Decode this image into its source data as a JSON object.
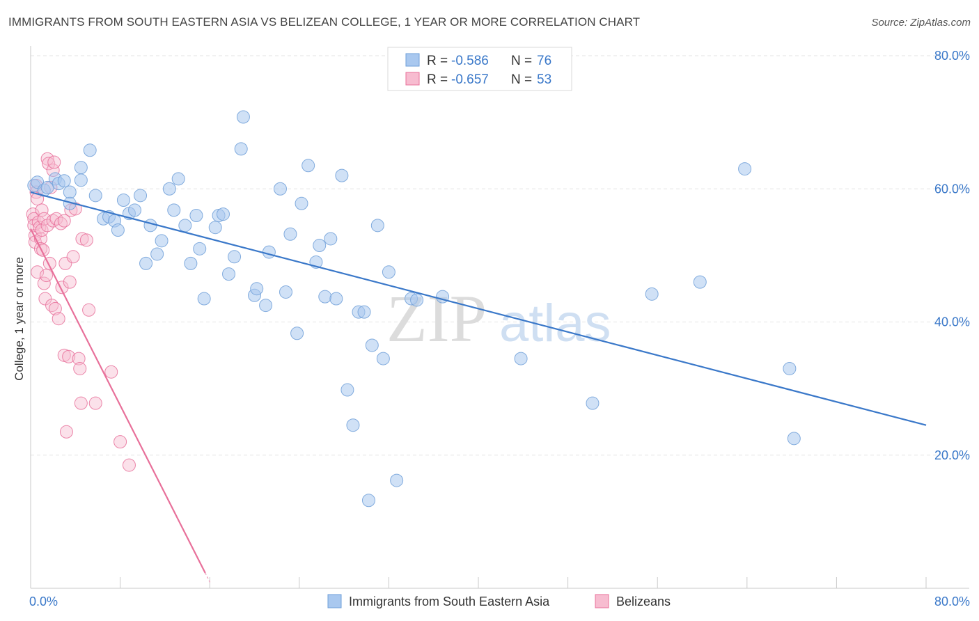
{
  "title": "IMMIGRANTS FROM SOUTH EASTERN ASIA VS BELIZEAN COLLEGE, 1 YEAR OR MORE CORRELATION CHART",
  "source": "Source: ZipAtlas.com",
  "watermark": "ZIPatlas",
  "colors": {
    "blue": "#3a78c9",
    "blue_fill": "#a9c8ef",
    "pink": "#e8709a",
    "pink_fill": "#f7bcd0",
    "grid": "#e3e3e3"
  },
  "legend_top": {
    "rows": [
      {
        "r_label": "R = ",
        "r_value": "-0.586",
        "n_label": "N = ",
        "n_value": "76"
      },
      {
        "r_label": "R = ",
        "r_value": "-0.657",
        "n_label": "N = ",
        "n_value": "53"
      }
    ]
  },
  "chart_data": {
    "type": "scatter",
    "ylabel": "College, 1 year or more",
    "xlim": [
      0,
      80
    ],
    "ylim": [
      0,
      80
    ],
    "x_tick_labels": [
      "0.0%",
      "80.0%"
    ],
    "y_tick_labels": [
      "20.0%",
      "40.0%",
      "60.0%",
      "80.0%"
    ],
    "y_ticks": [
      20,
      40,
      60,
      80
    ],
    "grid": true,
    "legend_position": "bottom",
    "series": [
      {
        "name": "Immigrants from South Eastern Asia",
        "color": "#3a78c9",
        "trend": {
          "x": [
            0,
            80
          ],
          "y": [
            59.5,
            24.5
          ]
        },
        "points": [
          [
            0.3,
            60.5
          ],
          [
            0.6,
            61.0
          ],
          [
            1.2,
            59.8
          ],
          [
            1.5,
            60.2
          ],
          [
            2.2,
            61.5
          ],
          [
            2.5,
            60.8
          ],
          [
            3.0,
            61.2
          ],
          [
            3.5,
            59.5
          ],
          [
            3.5,
            57.8
          ],
          [
            4.5,
            63.2
          ],
          [
            4.5,
            61.3
          ],
          [
            5.3,
            65.8
          ],
          [
            5.8,
            59.0
          ],
          [
            6.5,
            55.5
          ],
          [
            7.0,
            55.8
          ],
          [
            7.5,
            55.2
          ],
          [
            7.8,
            53.8
          ],
          [
            8.3,
            58.3
          ],
          [
            8.8,
            56.3
          ],
          [
            9.3,
            56.8
          ],
          [
            9.8,
            59.0
          ],
          [
            10.3,
            48.8
          ],
          [
            10.7,
            54.5
          ],
          [
            11.3,
            50.2
          ],
          [
            11.7,
            52.2
          ],
          [
            12.4,
            60.0
          ],
          [
            12.8,
            56.8
          ],
          [
            13.2,
            61.5
          ],
          [
            13.8,
            54.5
          ],
          [
            14.3,
            48.8
          ],
          [
            14.8,
            56.0
          ],
          [
            15.1,
            51.0
          ],
          [
            15.5,
            43.5
          ],
          [
            16.5,
            54.2
          ],
          [
            16.8,
            56.0
          ],
          [
            17.2,
            56.2
          ],
          [
            17.7,
            47.2
          ],
          [
            18.2,
            49.8
          ],
          [
            18.8,
            66.0
          ],
          [
            19.0,
            70.8
          ],
          [
            20.0,
            44.0
          ],
          [
            20.2,
            45.0
          ],
          [
            21.0,
            42.5
          ],
          [
            21.3,
            50.5
          ],
          [
            22.3,
            60.0
          ],
          [
            22.8,
            44.5
          ],
          [
            23.2,
            53.2
          ],
          [
            23.8,
            38.3
          ],
          [
            24.2,
            57.8
          ],
          [
            24.8,
            63.5
          ],
          [
            25.5,
            49.0
          ],
          [
            25.8,
            51.5
          ],
          [
            26.3,
            43.8
          ],
          [
            26.8,
            52.5
          ],
          [
            27.3,
            43.5
          ],
          [
            27.8,
            62.0
          ],
          [
            28.3,
            29.8
          ],
          [
            28.8,
            24.5
          ],
          [
            29.3,
            41.5
          ],
          [
            29.8,
            41.5
          ],
          [
            30.2,
            13.2
          ],
          [
            30.5,
            36.5
          ],
          [
            31.0,
            54.5
          ],
          [
            31.5,
            34.5
          ],
          [
            32.0,
            47.5
          ],
          [
            32.7,
            16.2
          ],
          [
            34.0,
            43.5
          ],
          [
            34.5,
            43.3
          ],
          [
            36.8,
            43.8
          ],
          [
            43.8,
            34.5
          ],
          [
            50.2,
            27.8
          ],
          [
            55.5,
            44.2
          ],
          [
            59.8,
            46.0
          ],
          [
            63.8,
            63.0
          ],
          [
            67.8,
            33.0
          ],
          [
            68.2,
            22.5
          ]
        ]
      },
      {
        "name": "Belizeans",
        "color": "#e8709a",
        "trend": {
          "x": [
            0,
            15.6
          ],
          "y": [
            54.0,
            2.3
          ]
        },
        "points": [
          [
            0.2,
            56.2
          ],
          [
            0.3,
            55.5
          ],
          [
            0.3,
            54.5
          ],
          [
            0.4,
            53.0
          ],
          [
            0.4,
            52.0
          ],
          [
            0.5,
            60.5
          ],
          [
            0.5,
            59.5
          ],
          [
            0.6,
            58.5
          ],
          [
            0.6,
            47.5
          ],
          [
            0.7,
            55.0
          ],
          [
            0.8,
            54.2
          ],
          [
            0.9,
            52.5
          ],
          [
            0.9,
            51.0
          ],
          [
            1.0,
            56.8
          ],
          [
            1.0,
            53.8
          ],
          [
            1.1,
            50.8
          ],
          [
            1.2,
            55.5
          ],
          [
            1.2,
            45.8
          ],
          [
            1.3,
            43.5
          ],
          [
            1.4,
            47.0
          ],
          [
            1.5,
            64.5
          ],
          [
            1.5,
            54.5
          ],
          [
            1.6,
            63.8
          ],
          [
            1.7,
            48.8
          ],
          [
            1.8,
            60.2
          ],
          [
            1.9,
            42.5
          ],
          [
            2.0,
            62.8
          ],
          [
            2.0,
            55.2
          ],
          [
            2.1,
            64.0
          ],
          [
            2.2,
            42.0
          ],
          [
            2.3,
            55.5
          ],
          [
            2.5,
            40.5
          ],
          [
            2.7,
            54.8
          ],
          [
            2.8,
            45.2
          ],
          [
            3.0,
            55.2
          ],
          [
            3.0,
            35.0
          ],
          [
            3.1,
            48.8
          ],
          [
            3.2,
            23.5
          ],
          [
            3.4,
            34.8
          ],
          [
            3.5,
            46.0
          ],
          [
            3.6,
            56.8
          ],
          [
            3.8,
            49.8
          ],
          [
            4.0,
            57.0
          ],
          [
            4.3,
            34.5
          ],
          [
            4.4,
            33.0
          ],
          [
            4.5,
            27.8
          ],
          [
            4.6,
            52.5
          ],
          [
            5.0,
            52.3
          ],
          [
            5.2,
            41.8
          ],
          [
            5.8,
            27.8
          ],
          [
            7.2,
            32.5
          ],
          [
            8.0,
            22.0
          ],
          [
            8.8,
            18.5
          ]
        ]
      }
    ]
  }
}
